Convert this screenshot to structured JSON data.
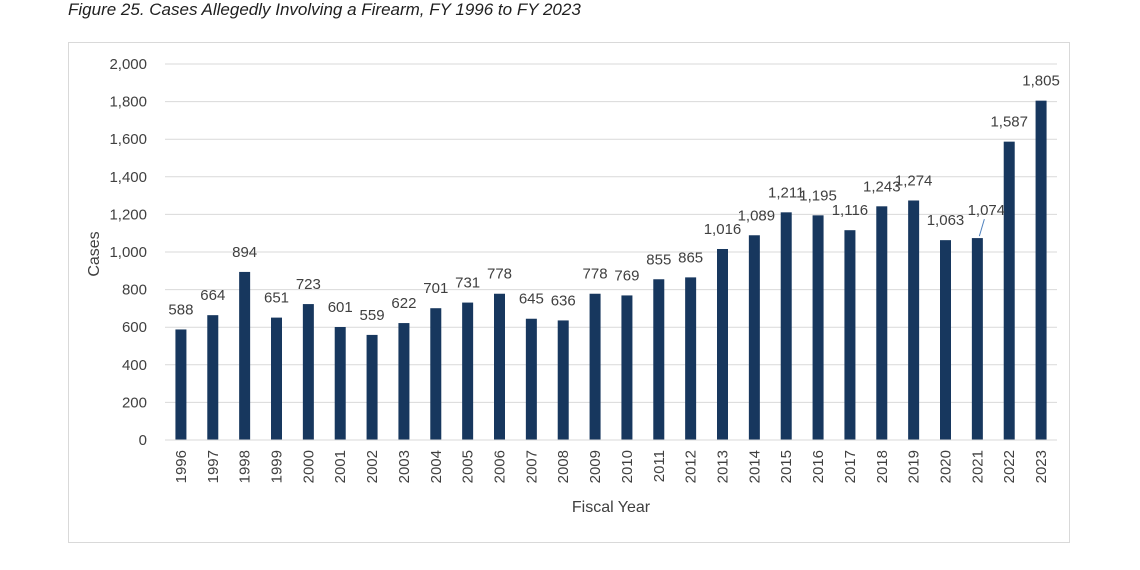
{
  "figure_title": "Figure 25. Cases Allegedly Involving a Firearm, FY 1996 to FY 2023",
  "colors": {
    "bar": "#17375e",
    "grid": "#d9d9d9",
    "text": "#404040"
  },
  "chart_data": {
    "type": "bar",
    "xlabel": "Fiscal Year",
    "ylabel": "Cases",
    "ylim": [
      0,
      2000
    ],
    "yticks": [
      0,
      200,
      400,
      600,
      800,
      1000,
      1200,
      1400,
      1600,
      1800,
      2000
    ],
    "ytick_labels": [
      "0",
      "200",
      "400",
      "600",
      "800",
      "1,000",
      "1,200",
      "1,400",
      "1,600",
      "1,800",
      "2,000"
    ],
    "grid": true,
    "categories": [
      "1996",
      "1997",
      "1998",
      "1999",
      "2000",
      "2001",
      "2002",
      "2003",
      "2004",
      "2005",
      "2006",
      "2007",
      "2008",
      "2009",
      "2010",
      "2011",
      "2012",
      "2013",
      "2014",
      "2015",
      "2016",
      "2017",
      "2018",
      "2019",
      "2020",
      "2021",
      "2022",
      "2023"
    ],
    "values": [
      588,
      664,
      894,
      651,
      723,
      601,
      559,
      622,
      701,
      731,
      778,
      645,
      636,
      778,
      769,
      855,
      865,
      1016,
      1089,
      1211,
      1195,
      1116,
      1243,
      1274,
      1063,
      1074,
      1587,
      1805
    ],
    "data_labels": [
      "588",
      "664",
      "894",
      "651",
      "723",
      "601",
      "559",
      "622",
      "701",
      "731",
      "778",
      "645",
      "636",
      "778",
      "769",
      "855",
      "865",
      "1,016",
      "1,089",
      "1,211",
      "1,195",
      "1,116",
      "1,243",
      "1,274",
      "1,063",
      "1,074",
      "1,587",
      "1,805"
    ]
  }
}
